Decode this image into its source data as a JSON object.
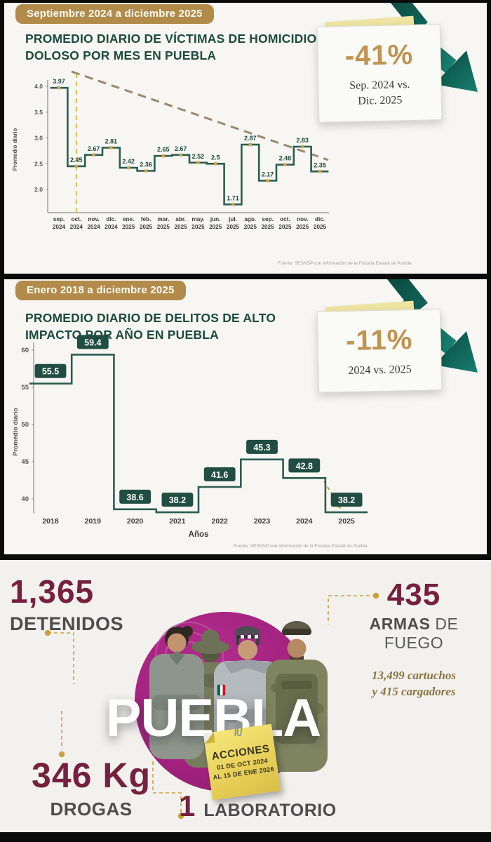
{
  "sections": {
    "homicidios": {
      "badge": "Septiembre 2024 a diciembre 2025",
      "title": "PROMEDIO DIARIO DE VÍCTIMAS DE HOMICIDIO DOLOSO POR MES EN PUEBLA",
      "callout": {
        "value": "-41%",
        "caption_line1": "Sep. 2024 vs.",
        "caption_line2": "Dic. 2025"
      },
      "source": "Fuente: SESNSP con información de la Fiscalía Estatal de Puebla"
    },
    "delitos": {
      "badge": "Enero 2018 a diciembre 2025",
      "title": "PROMEDIO DIARIO DE DELITOS DE ALTO IMPACTO POR AÑO EN PUEBLA",
      "callout": {
        "value": "-11%",
        "caption_line1": "2024 vs. 2025"
      },
      "source": "Fuente: SESNSP con información de la Fiscalía Estatal de Puebla"
    },
    "acciones": {
      "place": "PUEBLA",
      "stats": {
        "detenidos": {
          "value": "1,365",
          "label": "DETENIDOS"
        },
        "armas": {
          "value": "435",
          "label_bold": "ARMAS",
          "label_rest": " DE FUEGO",
          "sub_line1": "13,499 cartuchos",
          "sub_line2": "y 415 cargadores"
        },
        "drogas": {
          "value": "346 Kg",
          "label": "DROGAS"
        },
        "laboratorio": {
          "value": "1",
          "label": "LABORATORIO"
        }
      },
      "note": {
        "title": "ACCIONES",
        "line1": "01 DE OCT 2024",
        "line2": "AL 15 DE ENE 2026"
      }
    }
  },
  "chart_data": [
    {
      "type": "line",
      "subtype": "step",
      "title": "PROMEDIO DIARIO DE VÍCTIMAS DE HOMICIDIO DOLOSO POR MES EN PUEBLA",
      "period": "Septiembre 2024 a diciembre 2025",
      "ylabel": "Promedio diario",
      "xlabel": "",
      "yticks": [
        2.0,
        2.5,
        3.0,
        3.5,
        4.0
      ],
      "ylim": [
        1.6,
        4.15
      ],
      "grid": false,
      "legend": false,
      "categories": [
        [
          "sep.",
          "2024"
        ],
        [
          "oct.",
          "2024"
        ],
        [
          "nov.",
          "2024"
        ],
        [
          "dic.",
          "2024"
        ],
        [
          "ene.",
          "2025"
        ],
        [
          "feb.",
          "2025"
        ],
        [
          "mar.",
          "2025"
        ],
        [
          "abr.",
          "2025"
        ],
        [
          "may.",
          "2025"
        ],
        [
          "jun.",
          "2025"
        ],
        [
          "jul.",
          "2025"
        ],
        [
          "ago.",
          "2025"
        ],
        [
          "sep.",
          "2025"
        ],
        [
          "oct.",
          "2025"
        ],
        [
          "nov.",
          "2025"
        ],
        [
          "dic.",
          "2025"
        ]
      ],
      "values": [
        3.97,
        2.45,
        2.67,
        2.81,
        2.42,
        2.36,
        2.65,
        2.67,
        2.52,
        2.5,
        1.71,
        2.87,
        2.17,
        2.48,
        2.83,
        2.35
      ],
      "callout": "-41% Sep. 2024 vs. Dic. 2025",
      "annotations": [
        "descending dashed trend line from sep. 2024 to dic. 2025",
        "vertical gold dashed reference line at oct. 2024"
      ],
      "source": "Fuente: SESNSP con información de la Fiscalía Estatal de Puebla"
    },
    {
      "type": "line",
      "subtype": "step",
      "title": "PROMEDIO DIARIO DE DELITOS DE ALTO IMPACTO POR AÑO EN PUEBLA",
      "period": "Enero 2018 a diciembre 2025",
      "ylabel": "Promedio diario",
      "xlabel": "Años",
      "yticks": [
        40,
        45,
        50,
        55,
        60
      ],
      "ylim": [
        37,
        61
      ],
      "grid": false,
      "legend": false,
      "categories": [
        "2018",
        "2019",
        "2020",
        "2021",
        "2022",
        "2023",
        "2024",
        "2025"
      ],
      "values": [
        55.5,
        59.4,
        38.6,
        38.2,
        41.6,
        45.3,
        42.8,
        38.2
      ],
      "callout": "-11% 2024 vs. 2025",
      "annotations": [
        "gold dashed arrow between 2024 and 2025 values"
      ],
      "source": "Fuente: SESNSP con información de la Fiscalía Estatal de Puebla"
    }
  ],
  "colors": {
    "gold_badge": "#b28a49",
    "gold_accent": "#c9a23e",
    "value_gold": "#bf9350",
    "title_green": "#1d4a40",
    "line_green": "#2b5c50",
    "box_green": "#214d42",
    "maroon": "#76203f",
    "gray_text": "#4d4d4f",
    "magenta": "#a1217d",
    "sticky_yellow": "#ecd45c",
    "teal_dark": "#0a453d",
    "teal_light": "#177f6f",
    "trend": "#9a886e",
    "vline": "#d9b94b"
  }
}
